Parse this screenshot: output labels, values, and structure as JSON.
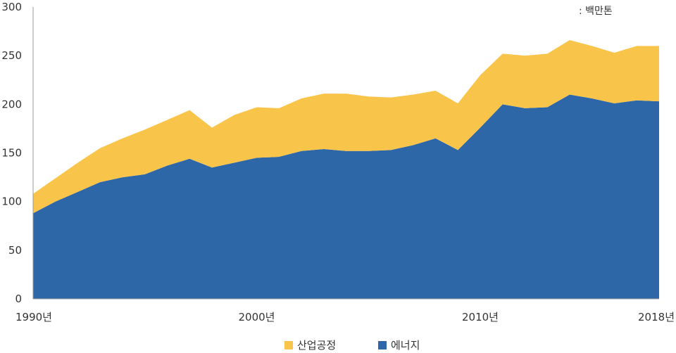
{
  "chart_data": {
    "type": "area",
    "stacked": true,
    "unit_note": ": 백만톤",
    "x": [
      1990,
      1991,
      1992,
      1993,
      1994,
      1995,
      1996,
      1997,
      1998,
      1999,
      2000,
      2001,
      2002,
      2003,
      2004,
      2005,
      2006,
      2007,
      2008,
      2009,
      2010,
      2011,
      2012,
      2013,
      2014,
      2015,
      2016,
      2017,
      2018
    ],
    "x_tick_labels": [
      {
        "year": 1990,
        "label": "1990년"
      },
      {
        "year": 2000,
        "label": "2000년"
      },
      {
        "year": 2010,
        "label": "2010년"
      },
      {
        "year": 2018,
        "label": "2018년"
      }
    ],
    "series": [
      {
        "name": "에너지",
        "color": "#2e67a7",
        "values": [
          88,
          100,
          110,
          120,
          125,
          128,
          137,
          144,
          135,
          140,
          145,
          146,
          152,
          154,
          152,
          152,
          153,
          158,
          165,
          153,
          176,
          200,
          196,
          197,
          210,
          206,
          201,
          204,
          203
        ]
      },
      {
        "name": "산업공정",
        "color": "#f9c44a",
        "values": [
          20,
          24,
          30,
          35,
          40,
          46,
          47,
          50,
          41,
          49,
          52,
          50,
          54,
          57,
          59,
          56,
          54,
          52,
          49,
          48,
          54,
          52,
          54,
          55,
          56,
          54,
          52,
          56,
          57
        ]
      }
    ],
    "yticks": [
      0,
      50,
      100,
      150,
      200,
      250,
      300
    ],
    "ylim": [
      0,
      300
    ],
    "xlabel": "",
    "ylabel": "",
    "grid": false,
    "legend_position": "bottom-center",
    "legend": [
      {
        "label": "산업공정",
        "color": "#f9c44a"
      },
      {
        "label": "에너지",
        "color": "#2e67a7"
      }
    ]
  }
}
